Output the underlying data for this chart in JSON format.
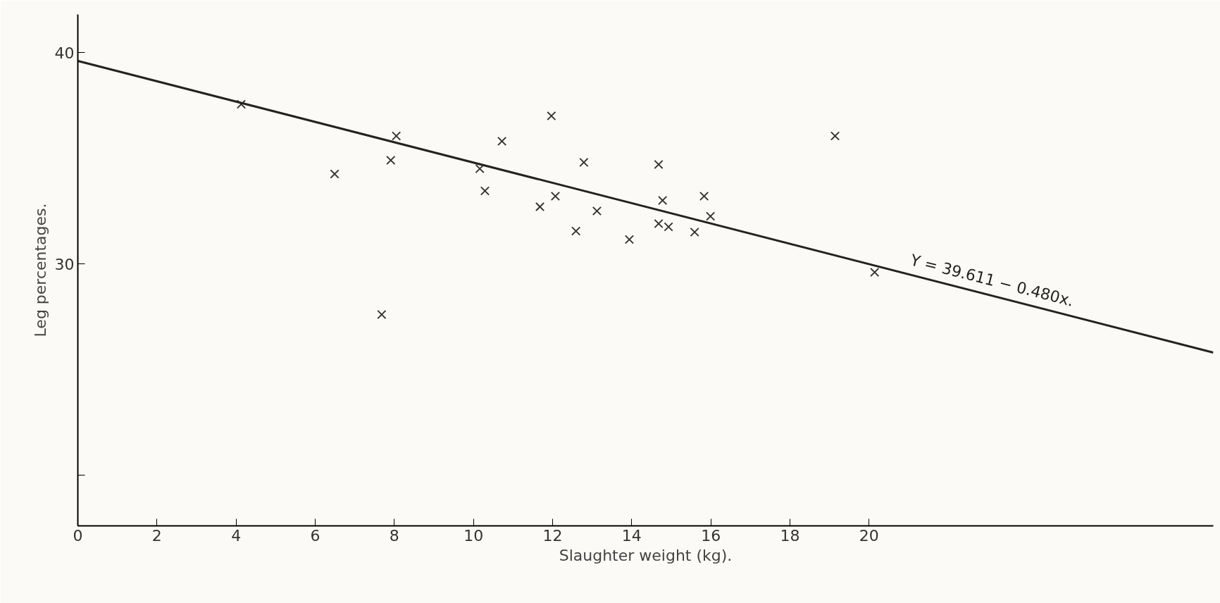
{
  "chart_data": {
    "type": "scatter",
    "xlabel": "Slaughter weight (kg).",
    "ylabel": "Leg percentages.",
    "xlim": [
      0,
      28.7
    ],
    "ylim": [
      17.6,
      41.8
    ],
    "xticks": [
      0,
      2,
      4,
      6,
      8,
      10,
      12,
      14,
      16,
      18,
      20
    ],
    "yticks": [
      {
        "value": 20,
        "label": null
      },
      30,
      40
    ],
    "grid": false,
    "marker": "cross",
    "series": [
      {
        "color": "#333333",
        "x": [
          4.13,
          6.49,
          7.91,
          8.05,
          7.68,
          10.16,
          10.29,
          10.72,
          11.97,
          11.68,
          12.07,
          12.79,
          12.59,
          13.12,
          13.94,
          14.68,
          14.78,
          14.68,
          14.93,
          15.59,
          15.83,
          15.99,
          19.14,
          20.14
        ],
        "values": [
          37.55,
          34.25,
          34.9,
          36.05,
          27.6,
          34.5,
          33.45,
          35.8,
          37.0,
          32.7,
          33.2,
          34.8,
          31.55,
          32.5,
          31.15,
          34.7,
          33.0,
          31.9,
          31.75,
          31.5,
          33.2,
          32.25,
          36.05,
          29.6
        ]
      },
      {
        "type": "line",
        "marker": "none",
        "color": "#222222",
        "line_style": "solid",
        "x": [
          0,
          28.7
        ],
        "values": [
          39.6,
          25.8
        ]
      }
    ],
    "annotations": [
      {
        "text": "Y = 39.611 − 0.480x.",
        "x": 21,
        "y": 29.53
      }
    ]
  }
}
